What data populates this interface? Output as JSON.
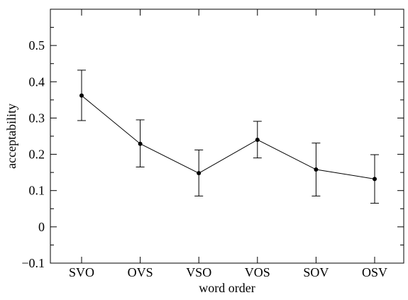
{
  "chart_data": {
    "type": "line",
    "title": "",
    "xlabel": "word order",
    "ylabel": "acceptability",
    "categories": [
      "SVO",
      "OVS",
      "VSO",
      "VOS",
      "SOV",
      "OSV"
    ],
    "series": [
      {
        "values": [
          0.362,
          0.229,
          0.148,
          0.24,
          0.158,
          0.132
        ],
        "error_low": [
          0.293,
          0.165,
          0.085,
          0.19,
          0.085,
          0.065
        ],
        "error_high": [
          0.432,
          0.295,
          0.212,
          0.291,
          0.231,
          0.199
        ]
      }
    ],
    "ylim": [
      -0.1,
      0.6
    ],
    "yticks": [
      -0.1,
      0,
      0.1,
      0.2,
      0.3,
      0.4,
      0.5
    ],
    "ytick_labels": [
      "−0.1",
      "0",
      "0.1",
      "0.2",
      "0.3",
      "0.4",
      "0.5"
    ],
    "grid": false,
    "legend": "none",
    "colors": {
      "line": "#000000",
      "marker": "#000000"
    }
  }
}
